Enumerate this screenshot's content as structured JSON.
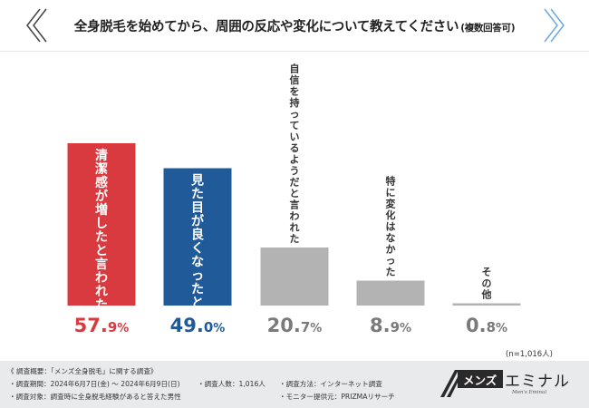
{
  "header": {
    "title": "全身脱毛を始めてから、周囲の反応や変化について教えてください",
    "subtitle": "(複数回答可)"
  },
  "chart_data": {
    "type": "bar",
    "title": "全身脱毛を始めてから、周囲の反応や変化について教えてください (複数回答可)",
    "categories": [
      "清潔感が増したと言われた",
      "見た目が良くなったと言われた",
      "自信を持っているようだと言われた",
      "特に変化はなかった",
      "その他"
    ],
    "values": [
      57.9,
      49.0,
      20.7,
      8.9,
      0.8
    ],
    "value_labels": [
      "57.9%",
      "49.0%",
      "20.7%",
      "8.9%",
      "0.8%"
    ],
    "colors": [
      "#d93a3f",
      "#205a99",
      "#b3b3b3",
      "#b3b3b3",
      "#b3b3b3"
    ],
    "label_colors": [
      "#d93a3f",
      "#205a99",
      "#7a7a7a",
      "#7a7a7a",
      "#7a7a7a"
    ],
    "ylim": [
      0,
      60
    ],
    "xlabel": "",
    "ylabel": "",
    "grid": false
  },
  "sample_note": "(n=1,016人)",
  "footer": {
    "overview": "《 調査概要：「メンズ全身脱毛」に関する調査》",
    "period": "・調査期間：2024年6月7日(金) ～ 2024年6月9日(日)",
    "count": "・調査人数：1,016人",
    "method": "・調査方法：インターネット調査",
    "target": "・調査対象：調査時に全身脱毛経験があると答えた男性",
    "provider": "・モニター提供元：PRIZMAリサーチ"
  },
  "logo": {
    "mens": "メンズ",
    "eminal": "エミナル",
    "tagline": "Men's Eminal"
  }
}
